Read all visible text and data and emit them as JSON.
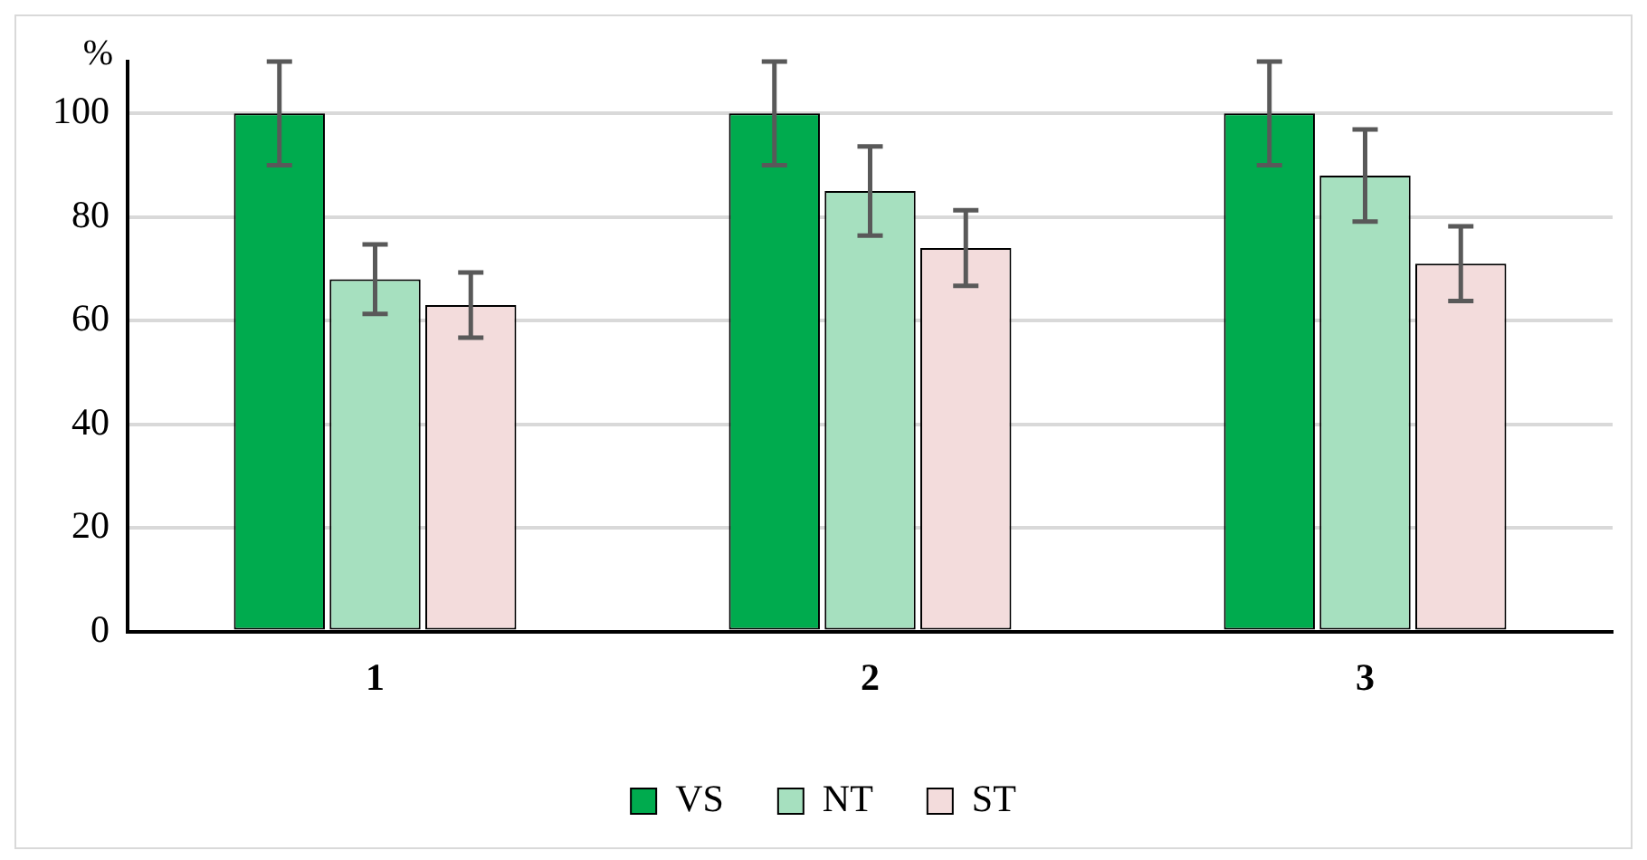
{
  "chart_data": {
    "type": "bar",
    "ylabel": "%",
    "categories": [
      "1",
      "2",
      "3"
    ],
    "series": [
      {
        "name": "VS",
        "color": "#00ab4e",
        "values": [
          100,
          100,
          100
        ],
        "errors": [
          10,
          10,
          10
        ]
      },
      {
        "name": "NT",
        "color": "#a6e0bf",
        "values": [
          68,
          85,
          88
        ],
        "errors": [
          6.7,
          8.6,
          8.9
        ]
      },
      {
        "name": "ST",
        "color": "#f3dcdc",
        "values": [
          63,
          74,
          71
        ],
        "errors": [
          6.3,
          7.3,
          7.2
        ]
      }
    ],
    "ylim": [
      0,
      110
    ],
    "yticks": [
      0,
      20,
      40,
      60,
      80,
      100
    ],
    "grid": "y",
    "legend": "bottom"
  }
}
